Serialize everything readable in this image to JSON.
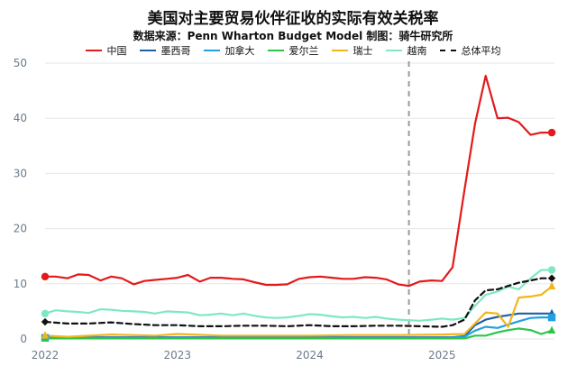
{
  "chart_data": {
    "type": "line",
    "title": "美国对主要贸易伙伴征收的实际有效关税率",
    "subtitle": "数据来源：Penn Wharton Budget Model    制图：骑牛研究所",
    "xlabel": "",
    "ylabel": "",
    "xlim": [
      2022.0,
      2025.85
    ],
    "ylim": [
      0,
      50
    ],
    "y_ticks": [
      0,
      10,
      20,
      30,
      40,
      50
    ],
    "x_tick_labels": [
      "2022",
      "2023",
      "2024",
      "2025"
    ],
    "vertical_marker_x": 2024.75,
    "legend_position": "top",
    "grid": "horizontal",
    "series": [
      {
        "name": "中国",
        "color": "#e31a1c",
        "style": "solid",
        "end_marker": "circle",
        "x": [
          2022.0,
          2022.08,
          2022.17,
          2022.25,
          2022.33,
          2022.42,
          2022.5,
          2022.58,
          2022.67,
          2022.75,
          2022.83,
          2022.92,
          2023.0,
          2023.08,
          2023.17,
          2023.25,
          2023.33,
          2023.42,
          2023.5,
          2023.58,
          2023.67,
          2023.75,
          2023.83,
          2023.92,
          2024.0,
          2024.08,
          2024.17,
          2024.25,
          2024.33,
          2024.42,
          2024.5,
          2024.58,
          2024.67,
          2024.75,
          2024.83,
          2024.92,
          2025.0,
          2025.08,
          2025.17,
          2025.25,
          2025.33,
          2025.42,
          2025.5,
          2025.58,
          2025.67,
          2025.75,
          2025.83
        ],
        "y": [
          11.3,
          11.3,
          11.0,
          11.7,
          11.6,
          10.6,
          11.3,
          11.0,
          9.9,
          10.5,
          10.7,
          10.9,
          11.1,
          11.6,
          10.4,
          11.1,
          11.1,
          10.9,
          10.8,
          10.3,
          9.8,
          9.8,
          9.9,
          10.9,
          11.2,
          11.3,
          11.1,
          10.9,
          10.9,
          11.2,
          11.1,
          10.8,
          9.9,
          9.6,
          10.4,
          10.6,
          10.5,
          13.0,
          27.0,
          39.0,
          47.7,
          40.0,
          40.1,
          39.3,
          37.0,
          37.4,
          37.4
        ]
      },
      {
        "name": "墨西哥",
        "color": "#1f5fa8",
        "style": "solid",
        "end_marker": "triangle",
        "x": [
          2022.0,
          2022.5,
          2023.0,
          2023.5,
          2024.0,
          2024.5,
          2025.0,
          2025.08,
          2025.17,
          2025.25,
          2025.33,
          2025.42,
          2025.5,
          2025.58,
          2025.67,
          2025.75,
          2025.83
        ],
        "y": [
          0.3,
          0.3,
          0.3,
          0.3,
          0.3,
          0.3,
          0.3,
          0.3,
          0.5,
          2.5,
          3.5,
          4.0,
          4.3,
          4.6,
          4.6,
          4.6,
          4.6
        ]
      },
      {
        "name": "加拿大",
        "color": "#22a0e0",
        "style": "solid",
        "end_marker": "square",
        "x": [
          2022.0,
          2022.5,
          2023.0,
          2023.5,
          2024.0,
          2024.5,
          2025.0,
          2025.08,
          2025.17,
          2025.25,
          2025.33,
          2025.42,
          2025.5,
          2025.58,
          2025.67,
          2025.75,
          2025.83
        ],
        "y": [
          0.2,
          0.2,
          0.2,
          0.2,
          0.2,
          0.2,
          0.2,
          0.2,
          0.4,
          1.5,
          2.2,
          2.0,
          2.6,
          3.2,
          3.8,
          3.9,
          3.9
        ]
      },
      {
        "name": "爱尔兰",
        "color": "#2cc54a",
        "style": "solid",
        "end_marker": "triangle",
        "x": [
          2022.0,
          2022.5,
          2023.0,
          2023.5,
          2024.0,
          2024.5,
          2025.0,
          2025.17,
          2025.25,
          2025.33,
          2025.42,
          2025.5,
          2025.58,
          2025.67,
          2025.75,
          2025.83
        ],
        "y": [
          0.1,
          0.1,
          0.1,
          0.1,
          0.1,
          0.1,
          0.1,
          0.1,
          0.6,
          0.6,
          1.2,
          1.6,
          1.9,
          1.6,
          0.9,
          1.5
        ]
      },
      {
        "name": "瑞士",
        "color": "#f2b51a",
        "style": "solid",
        "end_marker": "triangle",
        "x": [
          2022.0,
          2022.17,
          2022.5,
          2022.83,
          2023.0,
          2023.33,
          2023.67,
          2024.0,
          2024.33,
          2024.67,
          2025.0,
          2025.17,
          2025.25,
          2025.33,
          2025.42,
          2025.5,
          2025.58,
          2025.67,
          2025.75,
          2025.83
        ],
        "y": [
          0.6,
          0.4,
          0.8,
          0.6,
          0.9,
          0.6,
          0.6,
          0.6,
          0.7,
          0.7,
          0.8,
          0.9,
          2.8,
          4.8,
          4.6,
          2.2,
          7.5,
          7.7,
          8.0,
          9.5
        ]
      },
      {
        "name": "越南",
        "color": "#7fe8c2",
        "style": "solid",
        "end_marker": "circle",
        "x": [
          2022.0,
          2022.08,
          2022.17,
          2022.25,
          2022.33,
          2022.42,
          2022.5,
          2022.58,
          2022.67,
          2022.75,
          2022.83,
          2022.92,
          2023.0,
          2023.08,
          2023.17,
          2023.25,
          2023.33,
          2023.42,
          2023.5,
          2023.58,
          2023.67,
          2023.75,
          2023.83,
          2023.92,
          2024.0,
          2024.08,
          2024.17,
          2024.25,
          2024.33,
          2024.42,
          2024.5,
          2024.58,
          2024.67,
          2024.75,
          2024.83,
          2024.92,
          2025.0,
          2025.08,
          2025.17,
          2025.25,
          2025.33,
          2025.42,
          2025.5,
          2025.58,
          2025.67,
          2025.75,
          2025.83
        ],
        "y": [
          4.6,
          5.2,
          5.0,
          4.9,
          4.7,
          5.4,
          5.3,
          5.1,
          5.0,
          4.9,
          4.6,
          5.0,
          4.9,
          4.8,
          4.3,
          4.4,
          4.6,
          4.3,
          4.6,
          4.2,
          3.9,
          3.8,
          3.9,
          4.2,
          4.5,
          4.4,
          4.1,
          3.9,
          4.0,
          3.8,
          4.0,
          3.7,
          3.5,
          3.4,
          3.3,
          3.5,
          3.7,
          3.5,
          3.8,
          6.0,
          8.0,
          8.6,
          9.5,
          9.0,
          11.0,
          12.5,
          12.5
        ]
      },
      {
        "name": "总体平均",
        "color": "#111111",
        "style": "dashed",
        "end_marker": "diamond",
        "x": [
          2022.0,
          2022.17,
          2022.33,
          2022.5,
          2022.67,
          2022.83,
          2023.0,
          2023.17,
          2023.33,
          2023.5,
          2023.67,
          2023.83,
          2024.0,
          2024.17,
          2024.33,
          2024.5,
          2024.67,
          2024.83,
          2025.0,
          2025.08,
          2025.17,
          2025.25,
          2025.33,
          2025.42,
          2025.5,
          2025.58,
          2025.67,
          2025.75,
          2025.83
        ],
        "y": [
          3.1,
          2.8,
          2.8,
          3.0,
          2.7,
          2.5,
          2.5,
          2.3,
          2.3,
          2.4,
          2.4,
          2.3,
          2.5,
          2.3,
          2.3,
          2.4,
          2.4,
          2.3,
          2.2,
          2.5,
          3.5,
          7.0,
          8.8,
          9.0,
          9.6,
          10.2,
          10.6,
          11.0,
          11.0
        ]
      }
    ]
  }
}
